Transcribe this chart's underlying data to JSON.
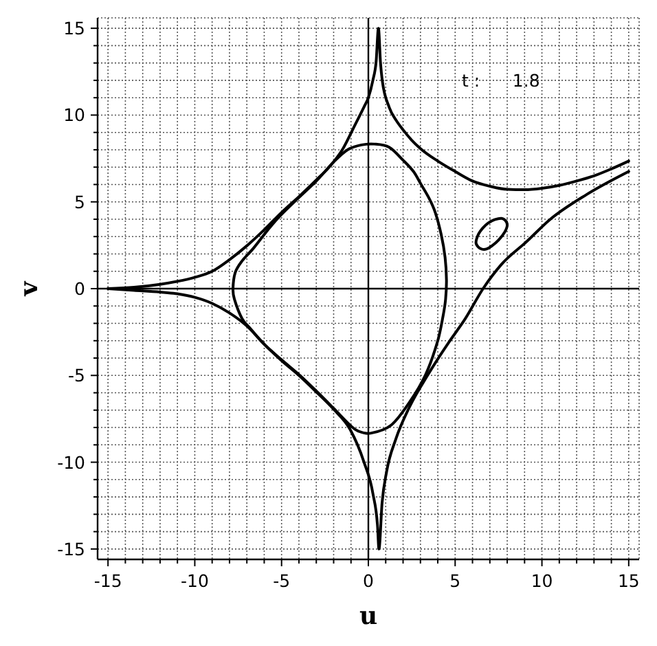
{
  "chart_data": {
    "type": "line",
    "xlabel": "u",
    "ylabel": "v",
    "annotations": [
      "t :      1.8"
    ],
    "xlim": [
      -15.6,
      15.6
    ],
    "ylim": [
      -15.6,
      15.6
    ],
    "xticks": [
      -15,
      {
        "value": -14,
        "label": null
      },
      {
        "value": -13,
        "label": null
      },
      {
        "value": -12,
        "label": null
      },
      {
        "value": -11,
        "label": null
      },
      -10,
      {
        "value": -9,
        "label": null
      },
      {
        "value": -8,
        "label": null
      },
      {
        "value": -7,
        "label": null
      },
      {
        "value": -6,
        "label": null
      },
      -5,
      {
        "value": -4,
        "label": null
      },
      {
        "value": -3,
        "label": null
      },
      {
        "value": -2,
        "label": null
      },
      {
        "value": -1,
        "label": null
      },
      0,
      {
        "value": 1,
        "label": null
      },
      {
        "value": 2,
        "label": null
      },
      {
        "value": 3,
        "label": null
      },
      {
        "value": 4,
        "label": null
      },
      5,
      {
        "value": 6,
        "label": null
      },
      {
        "value": 7,
        "label": null
      },
      {
        "value": 8,
        "label": null
      },
      {
        "value": 9,
        "label": null
      },
      10,
      {
        "value": 11,
        "label": null
      },
      {
        "value": 12,
        "label": null
      },
      {
        "value": 13,
        "label": null
      },
      {
        "value": 14,
        "label": null
      },
      15
    ],
    "yticks": [
      -15,
      {
        "value": -14,
        "label": null
      },
      {
        "value": -13,
        "label": null
      },
      {
        "value": -12,
        "label": null
      },
      {
        "value": -11,
        "label": null
      },
      -10,
      {
        "value": -9,
        "label": null
      },
      {
        "value": -8,
        "label": null
      },
      {
        "value": -7,
        "label": null
      },
      {
        "value": -6,
        "label": null
      },
      -5,
      {
        "value": -4,
        "label": null
      },
      {
        "value": -3,
        "label": null
      },
      {
        "value": -2,
        "label": null
      },
      {
        "value": -1,
        "label": null
      },
      0,
      {
        "value": 1,
        "label": null
      },
      {
        "value": 2,
        "label": null
      },
      {
        "value": 3,
        "label": null
      },
      {
        "value": 4,
        "label": null
      },
      5,
      {
        "value": 6,
        "label": null
      },
      {
        "value": 7,
        "label": null
      },
      {
        "value": 8,
        "label": null
      },
      {
        "value": 9,
        "label": null
      },
      10,
      {
        "value": 11,
        "label": null
      },
      {
        "value": 12,
        "label": null
      },
      {
        "value": 13,
        "label": null
      },
      {
        "value": 14,
        "label": null
      },
      15
    ],
    "grid": true,
    "marker": "none",
    "line_style": "solid",
    "series": [
      {
        "color": "#000000",
        "x": [
          -15,
          -13.5,
          -12,
          -11,
          -10,
          -9,
          -8,
          -7,
          -6,
          -5,
          -4,
          -3,
          -2.25,
          -1.46,
          -0.79,
          -0.26,
          0,
          0.26,
          0.45,
          0.58,
          0.7,
          0.8,
          1.2,
          1.6,
          2,
          2.5,
          3,
          4,
          5,
          6,
          7,
          8,
          9,
          10,
          11,
          12,
          13,
          14,
          15
        ],
        "values": [
          0,
          0.08,
          0.25,
          0.42,
          0.65,
          1,
          1.67,
          2.47,
          3.39,
          4.39,
          5.3,
          6.26,
          7.01,
          8.07,
          9.39,
          10.45,
          11,
          12,
          13.1,
          15,
          13,
          12,
          10.45,
          9.7,
          9.15,
          8.55,
          8.07,
          7.35,
          6.75,
          6.2,
          5.9,
          5.72,
          5.7,
          5.78,
          5.95,
          6.2,
          6.5,
          6.9,
          7.35
        ]
      },
      {
        "color": "#000000",
        "x": [
          -15,
          -13.5,
          -12,
          -11,
          -10,
          -9,
          -8,
          -7,
          -6,
          -5,
          -4,
          -3,
          -2,
          -1.06,
          -0.26,
          0.26,
          0.53,
          0.61,
          0.79,
          1.06,
          1.59,
          2.38,
          3.44,
          4.63,
          5.56,
          6.61,
          7.67,
          9.13,
          10.45,
          12.57,
          15
        ],
        "values": [
          0,
          -0.1,
          -0.2,
          -0.3,
          -0.5,
          -0.85,
          -1.4,
          -2.15,
          -3.2,
          -4.15,
          -5,
          -5.95,
          -6.95,
          -8.1,
          -9.97,
          -11.8,
          -13.7,
          -15,
          -12.35,
          -10.5,
          -8.65,
          -6.8,
          -4.95,
          -3.1,
          -1.77,
          0,
          1.4,
          2.72,
          3.97,
          5.42,
          6.75
        ]
      }
    ]
  }
}
